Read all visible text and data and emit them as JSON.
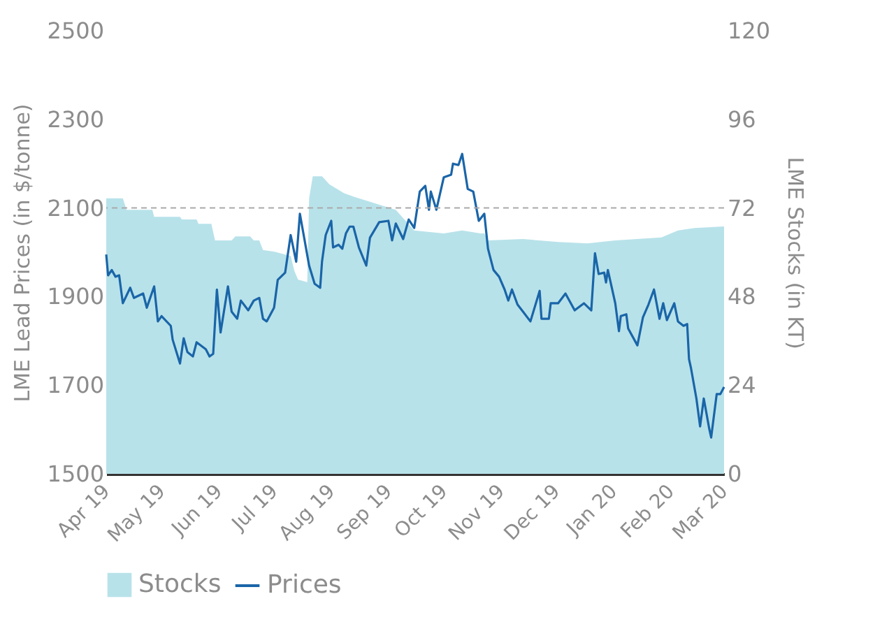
{
  "chart_data": {
    "type": "line",
    "xlabel": null,
    "ylabel": "LME Lead Prices (in $/tonne)",
    "y2label": "LME Stocks (in KT)",
    "xlim": [
      "2019-04-01",
      "2020-03-01"
    ],
    "xticks": [
      {
        "value": "2019-04-01",
        "label": "Apr 19"
      },
      {
        "value": "2019-05-01",
        "label": "May 19"
      },
      {
        "value": "2019-06-01",
        "label": "Jun 19"
      },
      {
        "value": "2019-07-01",
        "label": "Jul 19"
      },
      {
        "value": "2019-08-01",
        "label": "Aug 19"
      },
      {
        "value": "2019-09-01",
        "label": "Sep 19"
      },
      {
        "value": "2019-10-01",
        "label": "Oct 19"
      },
      {
        "value": "2019-11-01",
        "label": "Nov 19"
      },
      {
        "value": "2019-12-01",
        "label": "Dec 19"
      },
      {
        "value": "2020-01-01",
        "label": "Jan 20"
      },
      {
        "value": "2020-02-01",
        "label": "Feb 20"
      },
      {
        "value": "2020-03-01",
        "label": "Mar 20"
      }
    ],
    "ylim": [
      1500,
      2500
    ],
    "yticks": [
      1500,
      1700,
      1900,
      2100,
      2300,
      2500
    ],
    "y2lim": [
      0,
      120
    ],
    "y2ticks": [
      0,
      24,
      48,
      72,
      96,
      120
    ],
    "legend": "bottom",
    "ref_lines": [
      {
        "axis": "y",
        "value": 2100,
        "color": "#aaaaaa",
        "line_style": "dashed"
      }
    ],
    "series": [
      {
        "name": "Stocks",
        "type": "area",
        "axis": "y2",
        "color": "#b8e2ea",
        "x": [
          "2019-04-01",
          "2019-04-10",
          "2019-04-12",
          "2019-04-26",
          "2019-04-27",
          "2019-05-11",
          "2019-05-12",
          "2019-05-20",
          "2019-05-21",
          "2019-05-28",
          "2019-05-30",
          "2019-06-08",
          "2019-06-10",
          "2019-06-18",
          "2019-06-20",
          "2019-06-23",
          "2019-06-25",
          "2019-07-01",
          "2019-07-10",
          "2019-07-12",
          "2019-07-14",
          "2019-07-19",
          "2019-07-20",
          "2019-07-22",
          "2019-07-27",
          "2019-07-31",
          "2019-08-08",
          "2019-08-16",
          "2019-09-05",
          "2019-09-15",
          "2019-10-01",
          "2019-10-11",
          "2019-10-21",
          "2019-10-23",
          "2019-10-25",
          "2019-11-13",
          "2019-12-02",
          "2019-12-18",
          "2020-01-02",
          "2020-01-27",
          "2020-02-05",
          "2020-02-14",
          "2020-03-01"
        ],
        "values": [
          74.6,
          74.6,
          71.5,
          71.5,
          69.6,
          69.6,
          68.9,
          68.9,
          67.7,
          67.7,
          63.2,
          63.2,
          64.3,
          64.3,
          63.2,
          63.2,
          60.6,
          60.2,
          59,
          55,
          52.6,
          51.9,
          74.6,
          80.6,
          80.6,
          78.4,
          76,
          74.6,
          71.5,
          65.9,
          65.1,
          65.9,
          65.1,
          65.1,
          63.2,
          63.6,
          62.8,
          62.4,
          63.2,
          64,
          65.9,
          66.6,
          67
        ]
      },
      {
        "name": "Prices",
        "type": "line",
        "color": "#1a65a8",
        "x": [
          "2019-04-01",
          "2019-04-02",
          "2019-04-04",
          "2019-04-06",
          "2019-04-08",
          "2019-04-10",
          "2019-04-14",
          "2019-04-16",
          "2019-04-21",
          "2019-04-23",
          "2019-04-27",
          "2019-04-29",
          "2019-05-01",
          "2019-05-06",
          "2019-05-07",
          "2019-05-11",
          "2019-05-13",
          "2019-05-15",
          "2019-05-18",
          "2019-05-20",
          "2019-05-25",
          "2019-05-27",
          "2019-05-29",
          "2019-05-31",
          "2019-06-02",
          "2019-06-06",
          "2019-06-08",
          "2019-06-11",
          "2019-06-13",
          "2019-06-17",
          "2019-06-20",
          "2019-06-23",
          "2019-06-25",
          "2019-06-27",
          "2019-07-01",
          "2019-07-03",
          "2019-07-07",
          "2019-07-10",
          "2019-07-13",
          "2019-07-15",
          "2019-07-20",
          "2019-07-23",
          "2019-07-26",
          "2019-07-27",
          "2019-07-29",
          "2019-08-01",
          "2019-08-02",
          "2019-08-05",
          "2019-08-07",
          "2019-08-09",
          "2019-08-11",
          "2019-08-13",
          "2019-08-16",
          "2019-08-20",
          "2019-08-22",
          "2019-08-27",
          "2019-09-01",
          "2019-09-03",
          "2019-09-05",
          "2019-09-09",
          "2019-09-12",
          "2019-09-15",
          "2019-09-18",
          "2019-09-21",
          "2019-09-23",
          "2019-09-24",
          "2019-09-27",
          "2019-10-01",
          "2019-10-05",
          "2019-10-06",
          "2019-10-09",
          "2019-10-11",
          "2019-10-14",
          "2019-10-17",
          "2019-10-20",
          "2019-10-23",
          "2019-10-25",
          "2019-10-28",
          "2019-10-31",
          "2019-11-03",
          "2019-11-05",
          "2019-11-07",
          "2019-11-10",
          "2019-11-13",
          "2019-11-17",
          "2019-11-22",
          "2019-11-23",
          "2019-11-27",
          "2019-11-28",
          "2019-12-02",
          "2019-12-06",
          "2019-12-11",
          "2019-12-16",
          "2019-12-20",
          "2019-12-22",
          "2019-12-24",
          "2019-12-27",
          "2019-12-28",
          "2019-12-29",
          "2020-01-02",
          "2020-01-04",
          "2020-01-05",
          "2020-01-08",
          "2020-01-09",
          "2020-01-14",
          "2020-01-17",
          "2020-01-20",
          "2020-01-23",
          "2020-01-26",
          "2020-01-28",
          "2020-01-30",
          "2020-02-03",
          "2020-02-05",
          "2020-02-08",
          "2020-02-10",
          "2020-02-11",
          "2020-02-12",
          "2020-02-15",
          "2020-02-17",
          "2020-02-19",
          "2020-02-22",
          "2020-02-23",
          "2020-02-26",
          "2020-02-28",
          "2020-03-01"
        ],
        "values": [
          1995,
          1948,
          1960,
          1945,
          1948,
          1885,
          1920,
          1897,
          1907,
          1875,
          1923,
          1844,
          1856,
          1834,
          1803,
          1749,
          1806,
          1775,
          1765,
          1797,
          1781,
          1765,
          1771,
          1916,
          1819,
          1923,
          1866,
          1850,
          1891,
          1869,
          1891,
          1897,
          1850,
          1844,
          1875,
          1938,
          1954,
          2039,
          1979,
          2087,
          1970,
          1929,
          1920,
          1979,
          2039,
          2071,
          2011,
          2017,
          2008,
          2043,
          2058,
          2058,
          2011,
          1970,
          2033,
          2068,
          2071,
          2027,
          2065,
          2030,
          2074,
          2055,
          2137,
          2150,
          2096,
          2137,
          2096,
          2169,
          2175,
          2200,
          2197,
          2222,
          2143,
          2137,
          2071,
          2087,
          2008,
          1960,
          1945,
          1916,
          1891,
          1916,
          1882,
          1866,
          1844,
          1913,
          1850,
          1850,
          1885,
          1885,
          1907,
          1869,
          1885,
          1869,
          1998,
          1951,
          1954,
          1932,
          1960,
          1885,
          1822,
          1856,
          1860,
          1828,
          1790,
          1853,
          1882,
          1916,
          1850,
          1885,
          1847,
          1885,
          1844,
          1834,
          1838,
          1759,
          1740,
          1670,
          1607,
          1670,
          1601,
          1582,
          1680,
          1680,
          1696
        ]
      }
    ]
  }
}
